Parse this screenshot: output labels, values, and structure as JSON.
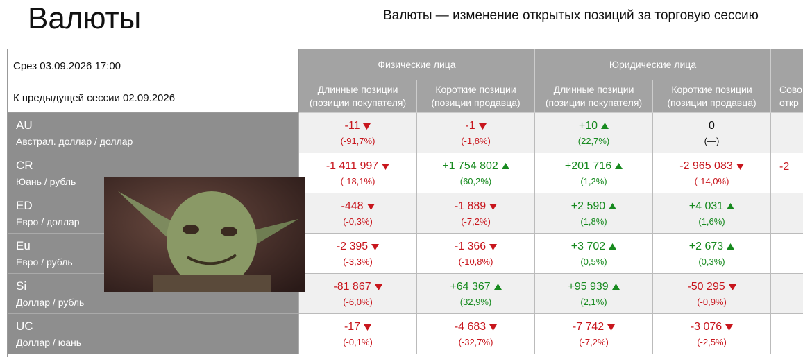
{
  "header": {
    "title": "Валюты",
    "subtitle": "Валюты — изменение открытых позиций за торговую сессию"
  },
  "table": {
    "slice": "Срез 03.09.2026 17:00",
    "previous": "К предыдущей сессии 02.09.2026",
    "groups": [
      "Физические лица",
      "Юридические лица"
    ],
    "columns": [
      [
        "Длинные позиции",
        "(позиции покупателя)"
      ],
      [
        "Короткие позиции",
        "(позиции продавца)"
      ],
      [
        "Длинные позиции",
        "(позиции покупателя)"
      ],
      [
        "Короткие позиции",
        "(позиции продавца)"
      ]
    ],
    "cut_column": [
      "Сово",
      "откр"
    ],
    "rows": [
      {
        "ticker": "AU",
        "name": "Австрал. доллар / доллар",
        "cells": [
          [
            "-11",
            "(-91,7%)"
          ],
          [
            "-1",
            "(-1,8%)"
          ],
          [
            "+10",
            "(22,7%)"
          ],
          [
            "0",
            "(—)"
          ]
        ]
      },
      {
        "ticker": "CR",
        "name": "Юань / рубль",
        "cells": [
          [
            "-1 411 997",
            "(-18,1%)"
          ],
          [
            "+1 754 802",
            "(60,2%)"
          ],
          [
            "+201 716",
            "(1,2%)"
          ],
          [
            "-2 965 083",
            "(-14,0%)"
          ]
        ],
        "cut_cell": "-2"
      },
      {
        "ticker": "ED",
        "name": "Евро / доллар",
        "cells": [
          [
            "-448",
            "(-0,3%)"
          ],
          [
            "-1 889",
            "(-7,2%)"
          ],
          [
            "+2 590",
            "(1,8%)"
          ],
          [
            "+4 031",
            "(1,6%)"
          ]
        ]
      },
      {
        "ticker": "Eu",
        "name": "Евро / рубль",
        "cells": [
          [
            "-2 395",
            "(-3,3%)"
          ],
          [
            "-1 366",
            "(-10,8%)"
          ],
          [
            "+3 702",
            "(0,5%)"
          ],
          [
            "+2 673",
            "(0,3%)"
          ]
        ]
      },
      {
        "ticker": "Si",
        "name": "Доллар / рубль",
        "cells": [
          [
            "-81 867",
            "(-6,0%)"
          ],
          [
            "+64 367",
            "(32,9%)"
          ],
          [
            "+95 939",
            "(2,1%)"
          ],
          [
            "-50 295",
            "(-0,9%)"
          ]
        ]
      },
      {
        "ticker": "UC",
        "name": "Доллар / юань",
        "cells": [
          [
            "-17",
            "(-0,1%)"
          ],
          [
            "-4 683",
            "(-32,7%)"
          ],
          [
            "-7 742",
            "(-7,2%)"
          ],
          [
            "-3 076",
            "(-2,5%)"
          ]
        ]
      }
    ]
  }
}
